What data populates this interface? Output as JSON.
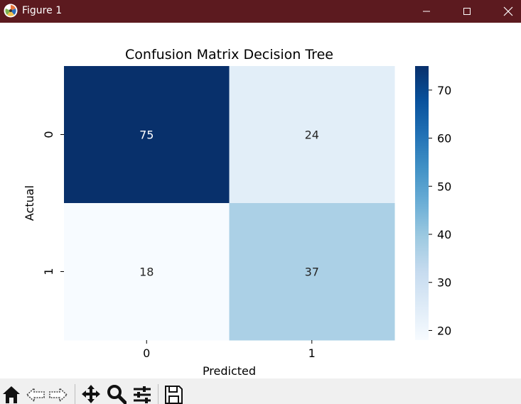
{
  "window": {
    "title": "Figure 1"
  },
  "toolbar": {
    "tools": [
      "home-icon",
      "back-icon",
      "forward-icon",
      "pan-icon",
      "zoom-icon",
      "configure-subplots-icon",
      "save-icon"
    ]
  },
  "colors": {
    "titlebar": "#5c1a1f",
    "toolbar_bg": "#f0f0f0",
    "colormap": "Blues"
  },
  "chart_data": {
    "type": "heatmap",
    "title": "Confusion Matrix Decision Tree",
    "xlabel": "Predicted",
    "ylabel": "Actual",
    "x_categories": [
      "0",
      "1"
    ],
    "y_categories": [
      "0",
      "1"
    ],
    "values": [
      [
        75,
        24
      ],
      [
        18,
        37
      ]
    ],
    "annotations": [
      "75",
      "24",
      "18",
      "37"
    ],
    "colorbar": {
      "min": 18,
      "max": 75,
      "ticks": [
        20,
        30,
        40,
        50,
        60,
        70
      ],
      "tick_labels": [
        "20",
        "30",
        "40",
        "50",
        "60",
        "70"
      ]
    }
  }
}
